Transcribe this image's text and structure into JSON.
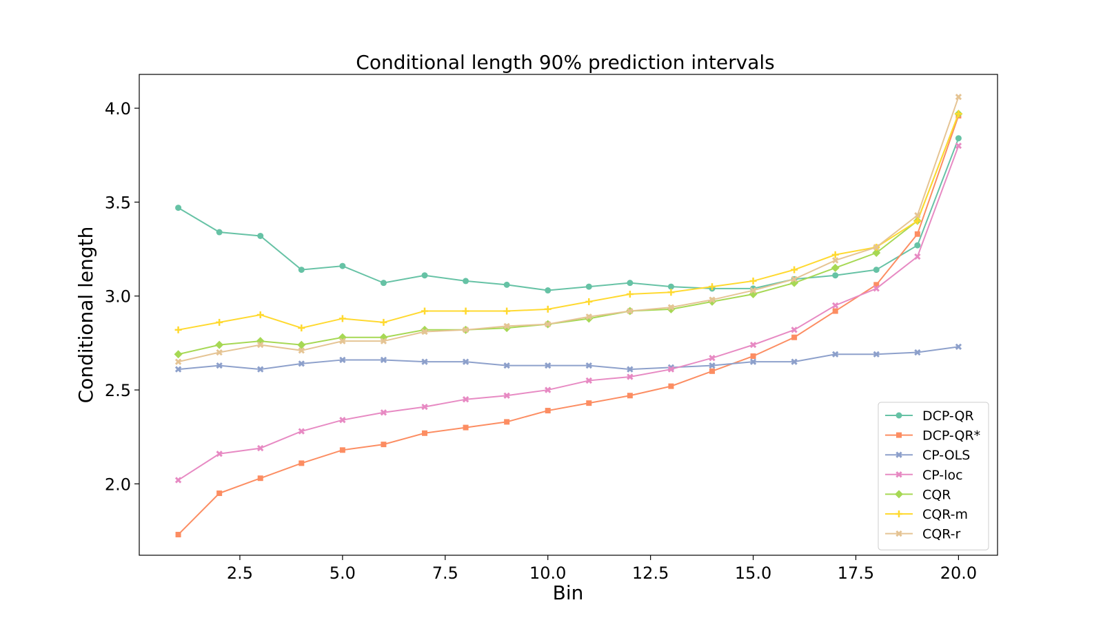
{
  "chart_data": {
    "type": "line",
    "title": "Conditional length 90% prediction intervals",
    "xlabel": "Bin",
    "ylabel": "Conditional length",
    "xlim": [
      0.05,
      20.95
    ],
    "ylim": [
      1.62,
      4.18
    ],
    "xticks": [
      2.5,
      5.0,
      7.5,
      10.0,
      12.5,
      15.0,
      17.5,
      20.0
    ],
    "xtick_labels": [
      "2.5",
      "5.0",
      "7.5",
      "10.0",
      "12.5",
      "15.0",
      "17.5",
      "20.0"
    ],
    "yticks": [
      2.0,
      2.5,
      3.0,
      3.5,
      4.0
    ],
    "ytick_labels": [
      "2.0",
      "2.5",
      "3.0",
      "3.5",
      "4.0"
    ],
    "grid": false,
    "legend_position": "lower right",
    "x": [
      1,
      2,
      3,
      4,
      5,
      6,
      7,
      8,
      9,
      10,
      11,
      12,
      13,
      14,
      15,
      16,
      17,
      18,
      19,
      20
    ],
    "series": [
      {
        "name": "DCP-QR",
        "color": "#66c2a5",
        "marker": "circle",
        "values": [
          3.47,
          3.34,
          3.32,
          3.14,
          3.16,
          3.07,
          3.11,
          3.08,
          3.06,
          3.03,
          3.05,
          3.07,
          3.05,
          3.04,
          3.04,
          3.09,
          3.11,
          3.14,
          3.27,
          3.84
        ]
      },
      {
        "name": "DCP-QR*",
        "color": "#fc8d62",
        "marker": "square",
        "values": [
          1.73,
          1.95,
          2.03,
          2.11,
          2.18,
          2.21,
          2.27,
          2.3,
          2.33,
          2.39,
          2.43,
          2.47,
          2.52,
          2.6,
          2.68,
          2.78,
          2.92,
          3.06,
          3.33,
          3.96
        ]
      },
      {
        "name": "CP-OLS",
        "color": "#8da0cb",
        "marker": "x",
        "values": [
          2.61,
          2.63,
          2.61,
          2.64,
          2.66,
          2.66,
          2.65,
          2.65,
          2.63,
          2.63,
          2.63,
          2.61,
          2.62,
          2.63,
          2.65,
          2.65,
          2.69,
          2.69,
          2.7,
          2.73
        ]
      },
      {
        "name": "CP-loc",
        "color": "#e78ac3",
        "marker": "x",
        "values": [
          2.02,
          2.16,
          2.19,
          2.28,
          2.34,
          2.38,
          2.41,
          2.45,
          2.47,
          2.5,
          2.55,
          2.57,
          2.61,
          2.67,
          2.74,
          2.82,
          2.95,
          3.04,
          3.21,
          3.8
        ]
      },
      {
        "name": "CQR",
        "color": "#a6d854",
        "marker": "diamond",
        "values": [
          2.69,
          2.74,
          2.76,
          2.74,
          2.78,
          2.78,
          2.82,
          2.82,
          2.83,
          2.85,
          2.88,
          2.92,
          2.93,
          2.97,
          3.01,
          3.07,
          3.15,
          3.23,
          3.4,
          3.97
        ]
      },
      {
        "name": "CQR-m",
        "color": "#ffd92f",
        "marker": "plus",
        "values": [
          2.82,
          2.86,
          2.9,
          2.83,
          2.88,
          2.86,
          2.92,
          2.92,
          2.92,
          2.93,
          2.97,
          3.01,
          3.02,
          3.05,
          3.08,
          3.14,
          3.22,
          3.26,
          3.4,
          3.97
        ]
      },
      {
        "name": "CQR-r",
        "color": "#e5c494",
        "marker": "x",
        "values": [
          2.65,
          2.7,
          2.74,
          2.71,
          2.76,
          2.76,
          2.81,
          2.82,
          2.84,
          2.85,
          2.89,
          2.92,
          2.94,
          2.98,
          3.03,
          3.09,
          3.19,
          3.26,
          3.43,
          4.06
        ]
      }
    ]
  }
}
